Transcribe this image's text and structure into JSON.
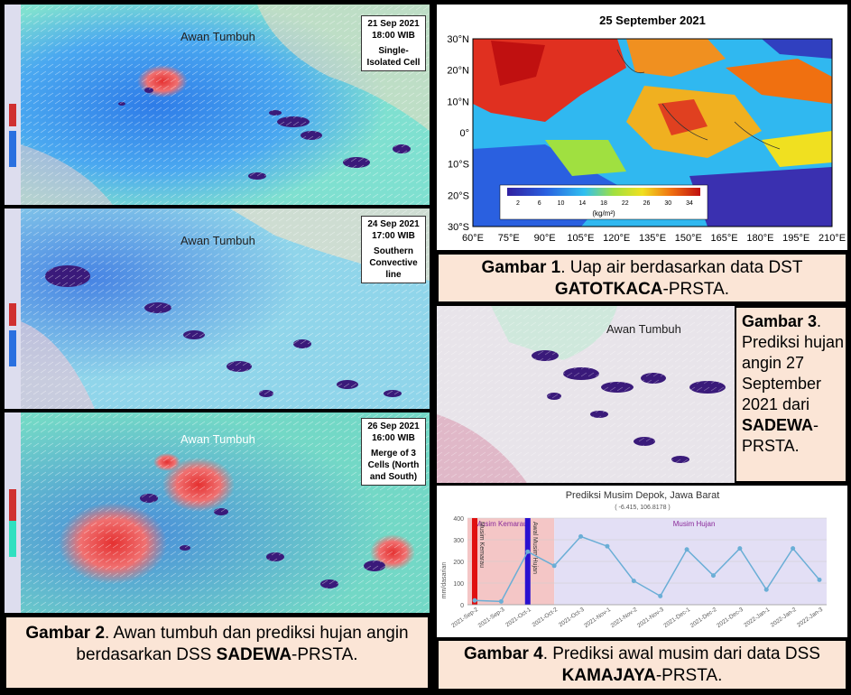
{
  "left_panels": [
    {
      "date": "21 Sep 2021",
      "time": "18:00 WIB",
      "desc": "Single-Isolated Cell",
      "awan": "Awan Tumbuh"
    },
    {
      "date": "24 Sep 2021",
      "time": "17:00 WIB",
      "desc": "Southern Convective line",
      "awan": "Awan Tumbuh"
    },
    {
      "date": "26 Sep 2021",
      "time": "16:00 WIB",
      "desc": "Merge of 3 Cells (North and South)",
      "awan": "Awan Tumbuh"
    }
  ],
  "caption2": {
    "bold1": "Gambar 2",
    "text": ". Awan tumbuh dan prediksi hujan angin berdasarkan DSS ",
    "bold2": "SADEWA",
    "text2": "-PRSTA."
  },
  "fig1": {
    "title": "25 September 2021",
    "lat_ticks": [
      "30°N",
      "20°N",
      "10°N",
      "0°",
      "10°S",
      "20°S",
      "30°S"
    ],
    "lon_ticks": [
      "60°E",
      "75°E",
      "90°E",
      "105°E",
      "120°E",
      "135°E",
      "150°E",
      "165°E",
      "180°E",
      "195°E",
      "210°E"
    ],
    "colorbar_ticks": [
      "2",
      "6",
      "10",
      "14",
      "18",
      "22",
      "26",
      "30",
      "34"
    ],
    "colorbar_unit": "(kg/m²)"
  },
  "caption1": {
    "bold1": "Gambar 1",
    "text": ". Uap air berdasarkan data DST ",
    "bold2": "GATOTKACA",
    "text2": "-PRSTA."
  },
  "fig3": {
    "awan": "Awan Tumbuh"
  },
  "caption3": {
    "bold1": "Gambar 3",
    "text": ". Prediksi hujan angin 27 September 2021 dari ",
    "bold2": "SADEWA",
    "text2": "-PRSTA."
  },
  "chart_data": {
    "type": "line",
    "title": "Prediksi Musim Depok, Jawa Barat",
    "subtitle": "( -6.415, 106.8178 )",
    "ylabel": "mm/dasarian",
    "ylim": [
      0,
      400
    ],
    "y_ticks": [
      "400",
      "300",
      "200",
      "100",
      "0"
    ],
    "categories": [
      "2021-Sep-2",
      "2021-Sep-3",
      "2021-Oct-1",
      "2021-Oct-2",
      "2021-Oct-3",
      "2021-Nov-1",
      "2021-Nov-2",
      "2021-Nov-3",
      "2021-Dec-1",
      "2021-Dec-2",
      "2021-Dec-3",
      "2022-Jan-1",
      "2022-Jan-2",
      "2022-Jan-3"
    ],
    "values": [
      20,
      15,
      245,
      180,
      315,
      270,
      110,
      40,
      255,
      135,
      260,
      70,
      260,
      115
    ],
    "regions": {
      "kemarau": "Musim Kemarau",
      "hujan": "Musim Hujan"
    },
    "markers": {
      "kemarau": "Musim Kemarau",
      "awal": "Awal Musim Hujan"
    }
  },
  "caption4": {
    "bold1": "Gambar 4",
    "text": ". Prediksi awal musim dari data DSS ",
    "bold2": "KAMAJAYA",
    "text2": "-PRSTA."
  },
  "colors": {
    "caption_bg": "#fbe5d6",
    "line": "#6aaed6",
    "region_red": "#f4c6c6",
    "region_blue": "#e3dff5"
  }
}
